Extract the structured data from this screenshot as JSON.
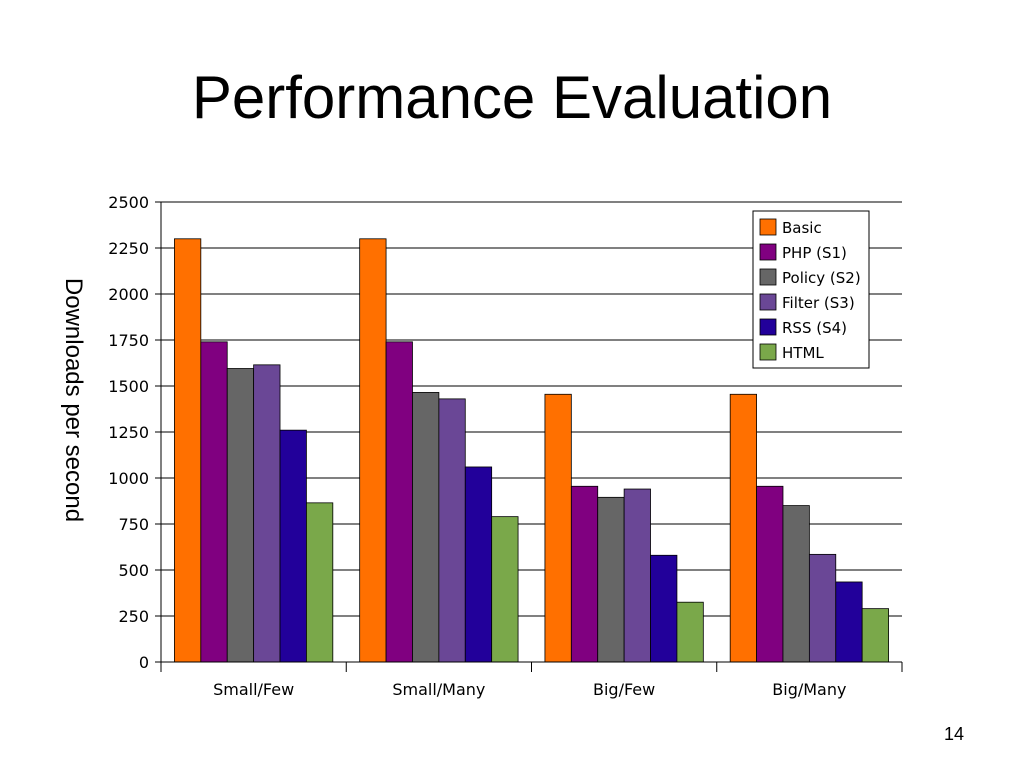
{
  "slide": {
    "title": "Performance Evaluation",
    "page_number": "14"
  },
  "chart_data": {
    "type": "bar",
    "title": "",
    "xlabel": "",
    "ylabel": "Downloads per second",
    "ylim": [
      0,
      2500
    ],
    "yticks": [
      0,
      250,
      500,
      750,
      1000,
      1250,
      1500,
      1750,
      2000,
      2250,
      2500
    ],
    "grid": true,
    "legend_position": "top-right",
    "categories": [
      "Small/Few",
      "Small/Many",
      "Big/Few",
      "Big/Many"
    ],
    "series": [
      {
        "name": "Basic",
        "color": "#ff7000",
        "values": [
          2300,
          2300,
          1455,
          1455
        ]
      },
      {
        "name": "PHP (S1)",
        "color": "#800080",
        "values": [
          1740,
          1740,
          955,
          955
        ]
      },
      {
        "name": "Policy (S2)",
        "color": "#666666",
        "values": [
          1595,
          1465,
          895,
          850
        ]
      },
      {
        "name": "Filter (S3)",
        "color": "#6a4796",
        "values": [
          1615,
          1430,
          940,
          585
        ]
      },
      {
        "name": "RSS (S4)",
        "color": "#22009a",
        "values": [
          1260,
          1060,
          580,
          435
        ]
      },
      {
        "name": "HTML",
        "color": "#7aa84a",
        "values": [
          865,
          790,
          325,
          290
        ]
      }
    ]
  }
}
